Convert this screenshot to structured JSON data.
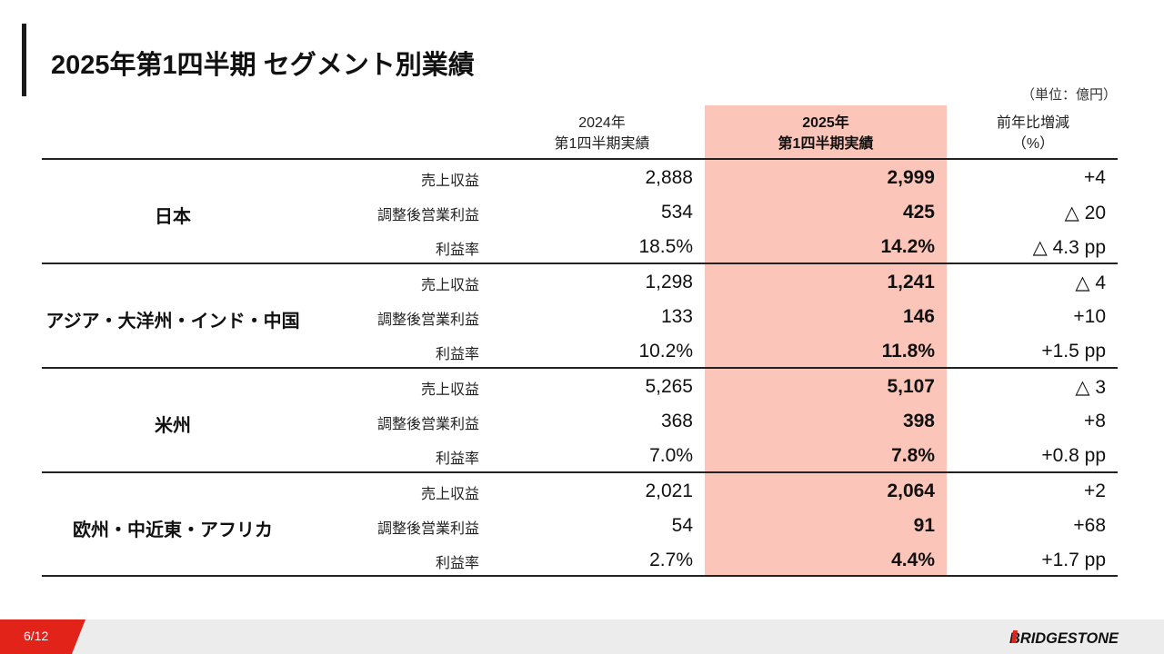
{
  "title": "2025年第1四半期 セグメント別業績",
  "unit": "（単位：億円）",
  "headers": {
    "prev_line1": "2024年",
    "prev_line2": "第1四半期実績",
    "curr_line1": "2025年",
    "curr_line2": "第1四半期実績",
    "chg_line1": "前年比増減",
    "chg_line2": "（%）"
  },
  "segments": [
    {
      "name": "日本",
      "rows": [
        {
          "metric": "売上収益",
          "y2024": "2,888",
          "y2025": "2,999",
          "change": "+4"
        },
        {
          "metric": "調整後営業利益",
          "y2024": "534",
          "y2025": "425",
          "change": "△ 20"
        },
        {
          "metric": "利益率",
          "y2024": "18.5%",
          "y2025": "14.2%",
          "change": "△ 4.3 pp"
        }
      ]
    },
    {
      "name": "アジア・大洋州・インド・中国",
      "rows": [
        {
          "metric": "売上収益",
          "y2024": "1,298",
          "y2025": "1,241",
          "change": "△ 4"
        },
        {
          "metric": "調整後営業利益",
          "y2024": "133",
          "y2025": "146",
          "change": "+10"
        },
        {
          "metric": "利益率",
          "y2024": "10.2%",
          "y2025": "11.8%",
          "change": "+1.5 pp"
        }
      ]
    },
    {
      "name": "米州",
      "rows": [
        {
          "metric": "売上収益",
          "y2024": "5,265",
          "y2025": "5,107",
          "change": "△ 3"
        },
        {
          "metric": "調整後営業利益",
          "y2024": "368",
          "y2025": "398",
          "change": "+8"
        },
        {
          "metric": "利益率",
          "y2024": "7.0%",
          "y2025": "7.8%",
          "change": "+0.8 pp"
        }
      ]
    },
    {
      "name": "欧州・中近東・アフリカ",
      "rows": [
        {
          "metric": "売上収益",
          "y2024": "2,021",
          "y2025": "2,064",
          "change": "+2"
        },
        {
          "metric": "調整後営業利益",
          "y2024": "54",
          "y2025": "91",
          "change": "+68"
        },
        {
          "metric": "利益率",
          "y2024": "2.7%",
          "y2025": "4.4%",
          "change": "+1.7 pp"
        }
      ]
    }
  ],
  "footer": {
    "page": "6/12",
    "logo_text": "BRIDGESTONE",
    "accent": "#e2231a",
    "highlight": "#fbc6b9"
  }
}
